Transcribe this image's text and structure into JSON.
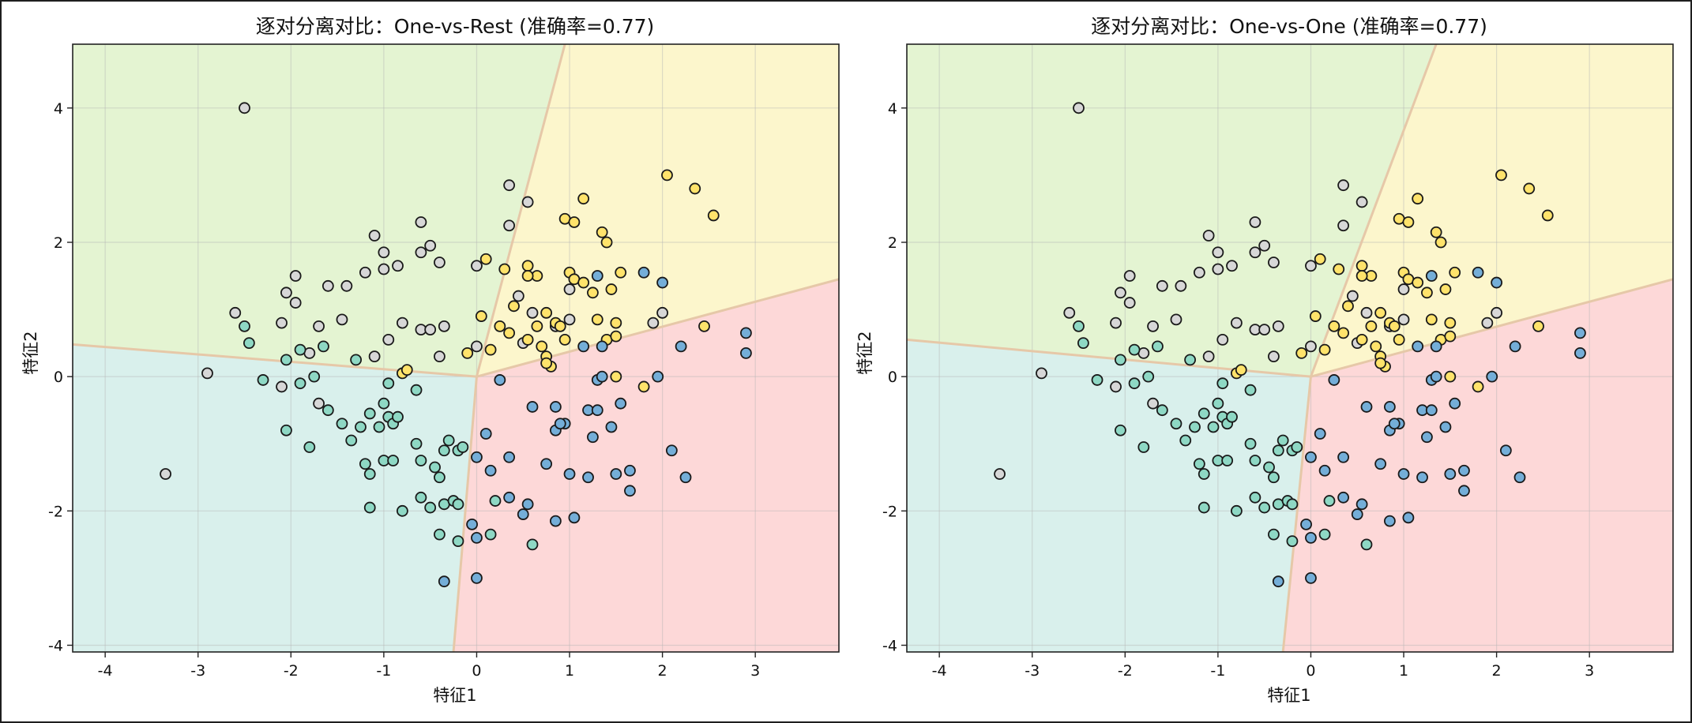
{
  "colors": {
    "class0": "#8ed8c4",
    "class1": "#d7d7d7",
    "class2": "#ffe36b",
    "class3": "#74aed8",
    "region0": "#d9f0ec",
    "region1": "#e4f4d2",
    "region2": "#fcf6cc",
    "region3": "#fdd8d8",
    "boundary": "#e6c8a8",
    "point_edge": "#1a1a1a"
  },
  "chart_data": [
    {
      "type": "scatter",
      "title": "逐对分离对比：One-vs-Rest (准确率=0.77)",
      "xlabel": "特征1",
      "ylabel": "特征2",
      "xlim": [
        -4.35,
        3.9
      ],
      "ylim": [
        -4.1,
        4.95
      ],
      "xticks": [
        -4,
        -3,
        -2,
        -1,
        0,
        1,
        2,
        3
      ],
      "yticks": [
        -4,
        -2,
        0,
        2,
        4
      ],
      "grid": true,
      "boundary_center": [
        0.0,
        0.0
      ],
      "boundaries": {
        "left_edge_y": 0.48,
        "bottom_edge_x": -0.25,
        "top_edge_x": 0.95,
        "right_edge_y": 1.45
      }
    },
    {
      "type": "scatter",
      "title": "逐对分离对比：One-vs-One (准确率=0.77)",
      "xlabel": "特征1",
      "ylabel": "特征2",
      "xlim": [
        -4.35,
        3.9
      ],
      "ylim": [
        -4.1,
        4.95
      ],
      "xticks": [
        -4,
        -3,
        -2,
        -1,
        0,
        1,
        2,
        3
      ],
      "yticks": [
        -4,
        -2,
        0,
        2,
        4
      ],
      "grid": true,
      "boundary_center": [
        0.0,
        0.0
      ],
      "boundaries": {
        "left_edge_y": 0.55,
        "bottom_edge_x": -0.3,
        "top_edge_x": 1.35,
        "right_edge_y": 1.45
      }
    }
  ],
  "points": [
    {
      "x": -2.5,
      "y": 4.0,
      "c": 1
    },
    {
      "x": -2.9,
      "y": 0.05,
      "c": 1
    },
    {
      "x": -3.35,
      "y": -1.45,
      "c": 1
    },
    {
      "x": -2.6,
      "y": 0.95,
      "c": 1
    },
    {
      "x": -2.1,
      "y": 0.8,
      "c": 1
    },
    {
      "x": -2.05,
      "y": 1.25,
      "c": 1
    },
    {
      "x": -1.95,
      "y": 1.5,
      "c": 1
    },
    {
      "x": -1.95,
      "y": 1.1,
      "c": 1
    },
    {
      "x": -1.7,
      "y": 0.75,
      "c": 1
    },
    {
      "x": -1.6,
      "y": 1.35,
      "c": 1
    },
    {
      "x": -1.45,
      "y": 0.85,
      "c": 1
    },
    {
      "x": -1.4,
      "y": 1.35,
      "c": 1
    },
    {
      "x": -1.2,
      "y": 1.55,
      "c": 1
    },
    {
      "x": -1.1,
      "y": 2.1,
      "c": 1
    },
    {
      "x": -1.0,
      "y": 1.85,
      "c": 1
    },
    {
      "x": -1.0,
      "y": 1.6,
      "c": 1
    },
    {
      "x": -0.85,
      "y": 1.65,
      "c": 1
    },
    {
      "x": -0.6,
      "y": 2.3,
      "c": 1
    },
    {
      "x": -0.5,
      "y": 1.95,
      "c": 1
    },
    {
      "x": -0.4,
      "y": 1.7,
      "c": 1
    },
    {
      "x": -0.6,
      "y": 1.85,
      "c": 1
    },
    {
      "x": -0.95,
      "y": 0.55,
      "c": 1
    },
    {
      "x": -0.8,
      "y": 0.8,
      "c": 1
    },
    {
      "x": -0.6,
      "y": 0.7,
      "c": 1
    },
    {
      "x": -0.5,
      "y": 0.7,
      "c": 1
    },
    {
      "x": -0.35,
      "y": 0.75,
      "c": 1
    },
    {
      "x": -1.1,
      "y": 0.3,
      "c": 1
    },
    {
      "x": -1.8,
      "y": 0.35,
      "c": 1
    },
    {
      "x": -1.7,
      "y": -0.4,
      "c": 1
    },
    {
      "x": -2.1,
      "y": -0.15,
      "c": 1
    },
    {
      "x": -0.4,
      "y": 0.3,
      "c": 1
    },
    {
      "x": 0.0,
      "y": 1.65,
      "c": 1
    },
    {
      "x": 0.35,
      "y": 2.85,
      "c": 1
    },
    {
      "x": 0.35,
      "y": 2.25,
      "c": 1
    },
    {
      "x": 0.55,
      "y": 2.6,
      "c": 1
    },
    {
      "x": 0.45,
      "y": 1.2,
      "c": 1
    },
    {
      "x": 0.6,
      "y": 0.95,
      "c": 1
    },
    {
      "x": 0.85,
      "y": 0.75,
      "c": 1
    },
    {
      "x": 1.0,
      "y": 1.3,
      "c": 1
    },
    {
      "x": 1.0,
      "y": 0.85,
      "c": 1
    },
    {
      "x": 1.9,
      "y": 0.8,
      "c": 1
    },
    {
      "x": 2.0,
      "y": 0.95,
      "c": 1
    },
    {
      "x": 0.5,
      "y": 0.5,
      "c": 1
    },
    {
      "x": 0.0,
      "y": 0.45,
      "c": 1
    },
    {
      "x": -2.5,
      "y": 0.75,
      "c": 0
    },
    {
      "x": -2.45,
      "y": 0.5,
      "c": 0
    },
    {
      "x": -2.05,
      "y": 0.25,
      "c": 0
    },
    {
      "x": -1.9,
      "y": 0.4,
      "c": 0
    },
    {
      "x": -1.65,
      "y": 0.45,
      "c": 0
    },
    {
      "x": -1.3,
      "y": 0.25,
      "c": 0
    },
    {
      "x": -2.3,
      "y": -0.05,
      "c": 0
    },
    {
      "x": -1.9,
      "y": -0.1,
      "c": 0
    },
    {
      "x": -1.75,
      "y": 0.0,
      "c": 0
    },
    {
      "x": -1.6,
      "y": -0.5,
      "c": 0
    },
    {
      "x": -2.05,
      "y": -0.8,
      "c": 0
    },
    {
      "x": -1.8,
      "y": -1.05,
      "c": 0
    },
    {
      "x": -1.45,
      "y": -0.7,
      "c": 0
    },
    {
      "x": -1.35,
      "y": -0.95,
      "c": 0
    },
    {
      "x": -1.25,
      "y": -0.75,
      "c": 0
    },
    {
      "x": -1.15,
      "y": -0.55,
      "c": 0
    },
    {
      "x": -1.05,
      "y": -0.75,
      "c": 0
    },
    {
      "x": -1.0,
      "y": -0.4,
      "c": 0
    },
    {
      "x": -0.95,
      "y": -0.6,
      "c": 0
    },
    {
      "x": -0.9,
      "y": -0.7,
      "c": 0
    },
    {
      "x": -0.85,
      "y": -0.6,
      "c": 0
    },
    {
      "x": -1.2,
      "y": -1.3,
      "c": 0
    },
    {
      "x": -1.15,
      "y": -1.45,
      "c": 0
    },
    {
      "x": -1.0,
      "y": -1.25,
      "c": 0
    },
    {
      "x": -0.9,
      "y": -1.25,
      "c": 0
    },
    {
      "x": -0.65,
      "y": -1.0,
      "c": 0
    },
    {
      "x": -0.6,
      "y": -1.25,
      "c": 0
    },
    {
      "x": -0.45,
      "y": -1.35,
      "c": 0
    },
    {
      "x": -0.35,
      "y": -1.1,
      "c": 0
    },
    {
      "x": -0.3,
      "y": -0.95,
      "c": 0
    },
    {
      "x": -0.2,
      "y": -1.1,
      "c": 0
    },
    {
      "x": -0.15,
      "y": -1.05,
      "c": 0
    },
    {
      "x": -0.4,
      "y": -1.5,
      "c": 0
    },
    {
      "x": -1.15,
      "y": -1.95,
      "c": 0
    },
    {
      "x": -0.8,
      "y": -2.0,
      "c": 0
    },
    {
      "x": -0.6,
      "y": -1.8,
      "c": 0
    },
    {
      "x": -0.5,
      "y": -1.95,
      "c": 0
    },
    {
      "x": -0.35,
      "y": -1.9,
      "c": 0
    },
    {
      "x": -0.25,
      "y": -1.85,
      "c": 0
    },
    {
      "x": -0.2,
      "y": -1.9,
      "c": 0
    },
    {
      "x": -0.4,
      "y": -2.35,
      "c": 0
    },
    {
      "x": -0.2,
      "y": -2.45,
      "c": 0
    },
    {
      "x": 0.15,
      "y": -2.35,
      "c": 0
    },
    {
      "x": 0.6,
      "y": -2.5,
      "c": 0
    },
    {
      "x": -0.65,
      "y": -0.2,
      "c": 0
    },
    {
      "x": -0.95,
      "y": -0.1,
      "c": 0
    },
    {
      "x": 0.2,
      "y": -1.85,
      "c": 0
    },
    {
      "x": -0.8,
      "y": 0.05,
      "c": 2
    },
    {
      "x": -0.75,
      "y": 0.1,
      "c": 2
    },
    {
      "x": 0.1,
      "y": 1.75,
      "c": 2
    },
    {
      "x": 0.3,
      "y": 1.6,
      "c": 2
    },
    {
      "x": 0.55,
      "y": 1.65,
      "c": 2
    },
    {
      "x": 0.65,
      "y": 1.5,
      "c": 2
    },
    {
      "x": 0.55,
      "y": 1.5,
      "c": 2
    },
    {
      "x": 1.0,
      "y": 1.55,
      "c": 2
    },
    {
      "x": 1.05,
      "y": 1.45,
      "c": 2
    },
    {
      "x": 1.15,
      "y": 1.4,
      "c": 2
    },
    {
      "x": 1.25,
      "y": 1.25,
      "c": 2
    },
    {
      "x": 1.45,
      "y": 1.3,
      "c": 2
    },
    {
      "x": 1.55,
      "y": 1.55,
      "c": 2
    },
    {
      "x": 1.15,
      "y": 2.65,
      "c": 2
    },
    {
      "x": 0.95,
      "y": 2.35,
      "c": 2
    },
    {
      "x": 1.05,
      "y": 2.3,
      "c": 2
    },
    {
      "x": 1.35,
      "y": 2.15,
      "c": 2
    },
    {
      "x": 1.4,
      "y": 2.0,
      "c": 2
    },
    {
      "x": 2.05,
      "y": 3.0,
      "c": 2
    },
    {
      "x": 2.35,
      "y": 2.8,
      "c": 2
    },
    {
      "x": 2.55,
      "y": 2.4,
      "c": 2
    },
    {
      "x": 0.4,
      "y": 1.05,
      "c": 2
    },
    {
      "x": 0.75,
      "y": 0.95,
      "c": 2
    },
    {
      "x": 0.85,
      "y": 0.8,
      "c": 2
    },
    {
      "x": 0.05,
      "y": 0.9,
      "c": 2
    },
    {
      "x": 0.25,
      "y": 0.75,
      "c": 2
    },
    {
      "x": 0.35,
      "y": 0.65,
      "c": 2
    },
    {
      "x": 0.65,
      "y": 0.75,
      "c": 2
    },
    {
      "x": 0.9,
      "y": 0.75,
      "c": 2
    },
    {
      "x": 1.3,
      "y": 0.85,
      "c": 2
    },
    {
      "x": 1.5,
      "y": 0.8,
      "c": 2
    },
    {
      "x": 1.4,
      "y": 0.55,
      "c": 2
    },
    {
      "x": 1.5,
      "y": 0.6,
      "c": 2
    },
    {
      "x": 0.15,
      "y": 0.4,
      "c": 2
    },
    {
      "x": -0.1,
      "y": 0.35,
      "c": 2
    },
    {
      "x": 0.55,
      "y": 0.55,
      "c": 2
    },
    {
      "x": 0.7,
      "y": 0.45,
      "c": 2
    },
    {
      "x": 0.75,
      "y": 0.3,
      "c": 2
    },
    {
      "x": 0.8,
      "y": 0.15,
      "c": 2
    },
    {
      "x": 0.75,
      "y": 0.2,
      "c": 2
    },
    {
      "x": 1.5,
      "y": 0.0,
      "c": 2
    },
    {
      "x": 1.8,
      "y": -0.15,
      "c": 2
    },
    {
      "x": 2.45,
      "y": 0.75,
      "c": 2
    },
    {
      "x": 0.95,
      "y": 0.55,
      "c": 2
    },
    {
      "x": 1.3,
      "y": 1.5,
      "c": 3
    },
    {
      "x": 1.8,
      "y": 1.55,
      "c": 3
    },
    {
      "x": 2.0,
      "y": 1.4,
      "c": 3
    },
    {
      "x": 1.15,
      "y": 0.45,
      "c": 3
    },
    {
      "x": 1.35,
      "y": 0.45,
      "c": 3
    },
    {
      "x": 2.2,
      "y": 0.45,
      "c": 3
    },
    {
      "x": 2.9,
      "y": 0.65,
      "c": 3
    },
    {
      "x": 2.9,
      "y": 0.35,
      "c": 3
    },
    {
      "x": 0.25,
      "y": -0.05,
      "c": 3
    },
    {
      "x": 1.3,
      "y": -0.05,
      "c": 3
    },
    {
      "x": 1.35,
      "y": 0.0,
      "c": 3
    },
    {
      "x": 1.95,
      "y": 0.0,
      "c": 3
    },
    {
      "x": 0.6,
      "y": -0.45,
      "c": 3
    },
    {
      "x": 0.85,
      "y": -0.45,
      "c": 3
    },
    {
      "x": 1.2,
      "y": -0.5,
      "c": 3
    },
    {
      "x": 1.3,
      "y": -0.5,
      "c": 3
    },
    {
      "x": 1.55,
      "y": -0.4,
      "c": 3
    },
    {
      "x": 0.1,
      "y": -0.85,
      "c": 3
    },
    {
      "x": 0.85,
      "y": -0.8,
      "c": 3
    },
    {
      "x": 0.95,
      "y": -0.7,
      "c": 3
    },
    {
      "x": 0.9,
      "y": -0.7,
      "c": 3
    },
    {
      "x": 1.25,
      "y": -0.9,
      "c": 3
    },
    {
      "x": 1.45,
      "y": -0.75,
      "c": 3
    },
    {
      "x": 0.0,
      "y": -1.2,
      "c": 3
    },
    {
      "x": 0.35,
      "y": -1.2,
      "c": 3
    },
    {
      "x": 0.15,
      "y": -1.4,
      "c": 3
    },
    {
      "x": 0.75,
      "y": -1.3,
      "c": 3
    },
    {
      "x": 1.0,
      "y": -1.45,
      "c": 3
    },
    {
      "x": 1.2,
      "y": -1.5,
      "c": 3
    },
    {
      "x": 1.5,
      "y": -1.45,
      "c": 3
    },
    {
      "x": 1.65,
      "y": -1.4,
      "c": 3
    },
    {
      "x": 2.1,
      "y": -1.1,
      "c": 3
    },
    {
      "x": 2.25,
      "y": -1.5,
      "c": 3
    },
    {
      "x": 1.65,
      "y": -1.7,
      "c": 3
    },
    {
      "x": 0.35,
      "y": -1.8,
      "c": 3
    },
    {
      "x": 0.55,
      "y": -1.9,
      "c": 3
    },
    {
      "x": 0.5,
      "y": -2.05,
      "c": 3
    },
    {
      "x": 0.85,
      "y": -2.15,
      "c": 3
    },
    {
      "x": 1.05,
      "y": -2.1,
      "c": 3
    },
    {
      "x": -0.05,
      "y": -2.2,
      "c": 3
    },
    {
      "x": -0.35,
      "y": -3.05,
      "c": 3
    },
    {
      "x": 0.0,
      "y": -3.0,
      "c": 3
    },
    {
      "x": 0.0,
      "y": -2.4,
      "c": 3
    }
  ]
}
